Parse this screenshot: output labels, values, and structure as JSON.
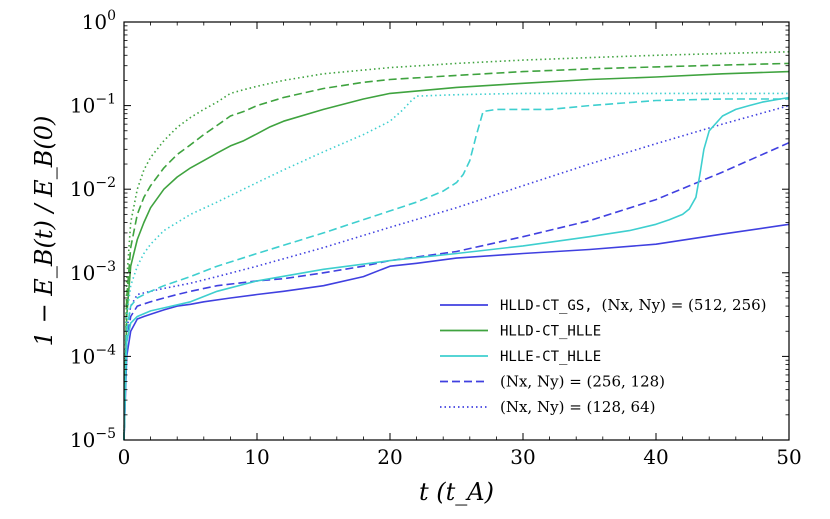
{
  "chart_data": {
    "type": "line",
    "xlabel": "t (t_A)",
    "ylabel": "1 − E_B(t) / E_B(0)",
    "yscale": "log",
    "xlim": [
      0,
      50
    ],
    "ylim": [
      1e-05,
      1
    ],
    "x_ticks": [
      0,
      10,
      20,
      30,
      40,
      50
    ],
    "x_tick_labels": [
      "0",
      "10",
      "20",
      "30",
      "40",
      "50"
    ],
    "y_ticks": [
      1e-05,
      0.0001,
      0.001,
      0.01,
      0.1,
      1
    ],
    "y_tick_labels": [
      {
        "base": "10",
        "exp": "−5"
      },
      {
        "base": "10",
        "exp": "−4"
      },
      {
        "base": "10",
        "exp": "−3"
      },
      {
        "base": "10",
        "exp": "−2"
      },
      {
        "base": "10",
        "exp": "−1"
      },
      {
        "base": "10",
        "exp": "0"
      }
    ],
    "colors": {
      "HLLD-CT_GS": "#4040e0",
      "HLLD-CT_HLLE": "#3fa33f",
      "HLLE-CT_HLLE": "#3ecfcf"
    },
    "legend": {
      "placement": "lower-right",
      "entries": [
        {
          "code": "HLLD-CT_GS,",
          "math": "(Nx, Ny) = (512, 256)",
          "style": "solid",
          "color": "#4040e0"
        },
        {
          "code": "HLLD-CT_HLLE",
          "math": "",
          "style": "solid",
          "color": "#3fa33f"
        },
        {
          "code": "HLLE-CT_HLLE",
          "math": "",
          "style": "solid",
          "color": "#3ecfcf"
        },
        {
          "code": "",
          "math": "(Nx, Ny) = (256, 128)",
          "style": "dashed",
          "color": "#4040e0"
        },
        {
          "code": "",
          "math": "(Nx, Ny) = (128, 64)",
          "style": "dotted",
          "color": "#4040e0"
        }
      ]
    },
    "series": [
      {
        "name": "HLLD-CT_GS (512,256)",
        "scheme": "HLLD-CT_GS",
        "resolution": "512x256",
        "style": "solid",
        "color": "#4040e0",
        "x": [
          0,
          0.2,
          0.5,
          1,
          1.5,
          2,
          3,
          4,
          5,
          6,
          8,
          10,
          12,
          15,
          18,
          20,
          22,
          25,
          30,
          35,
          40,
          45,
          50
        ],
        "y": [
          1e-05,
          0.0001,
          0.0002,
          0.00028,
          0.0003,
          0.00032,
          0.00036,
          0.0004,
          0.00042,
          0.00045,
          0.0005,
          0.00055,
          0.0006,
          0.0007,
          0.0009,
          0.0012,
          0.0013,
          0.0015,
          0.0017,
          0.0019,
          0.0022,
          0.0029,
          0.0038
        ]
      },
      {
        "name": "HLLD-CT_GS (256,128)",
        "scheme": "HLLD-CT_GS",
        "resolution": "256x128",
        "style": "dashed",
        "color": "#4040e0",
        "x": [
          0,
          0.2,
          0.5,
          1,
          2,
          3,
          4,
          5,
          7,
          10,
          12,
          15,
          18,
          20,
          25,
          30,
          35,
          40,
          45,
          50
        ],
        "y": [
          1e-05,
          0.00015,
          0.0003,
          0.0004,
          0.00045,
          0.0005,
          0.00055,
          0.0006,
          0.0007,
          0.0008,
          0.00085,
          0.001,
          0.0012,
          0.0014,
          0.0018,
          0.0027,
          0.0042,
          0.0075,
          0.016,
          0.036
        ]
      },
      {
        "name": "HLLD-CT_GS (128,64)",
        "scheme": "HLLD-CT_GS",
        "resolution": "128x64",
        "style": "dotted",
        "color": "#4040e0",
        "x": [
          0,
          0.2,
          0.5,
          1,
          2,
          3,
          5,
          7,
          10,
          15,
          20,
          25,
          30,
          35,
          40,
          45,
          50
        ],
        "y": [
          1e-05,
          0.0002,
          0.0004,
          0.00055,
          0.0006,
          0.00065,
          0.00075,
          0.0009,
          0.0012,
          0.002,
          0.0035,
          0.006,
          0.011,
          0.02,
          0.035,
          0.06,
          0.1
        ]
      },
      {
        "name": "HLLD-CT_HLLE (512,256)",
        "scheme": "HLLD-CT_HLLE",
        "resolution": "512x256",
        "style": "solid",
        "color": "#3fa33f",
        "x": [
          0,
          0.2,
          0.5,
          1,
          1.5,
          2,
          3,
          4,
          5,
          6,
          7,
          8,
          9,
          10,
          11,
          12,
          15,
          18,
          20,
          25,
          30,
          35,
          40,
          45,
          50
        ],
        "y": [
          1e-05,
          0.0003,
          0.0012,
          0.0025,
          0.004,
          0.006,
          0.01,
          0.014,
          0.018,
          0.022,
          0.027,
          0.033,
          0.038,
          0.046,
          0.056,
          0.065,
          0.09,
          0.12,
          0.14,
          0.165,
          0.185,
          0.205,
          0.22,
          0.24,
          0.255
        ]
      },
      {
        "name": "HLLD-CT_HLLE (256,128)",
        "scheme": "HLLD-CT_HLLE",
        "resolution": "256x128",
        "style": "dashed",
        "color": "#3fa33f",
        "x": [
          0,
          0.2,
          0.5,
          1,
          1.5,
          2,
          3,
          4,
          5,
          6,
          7,
          8,
          9,
          10,
          12,
          15,
          18,
          20,
          25,
          30,
          35,
          40,
          45,
          50
        ],
        "y": [
          1e-05,
          0.0005,
          0.002,
          0.005,
          0.008,
          0.011,
          0.018,
          0.026,
          0.034,
          0.045,
          0.058,
          0.075,
          0.085,
          0.1,
          0.125,
          0.16,
          0.19,
          0.205,
          0.23,
          0.255,
          0.275,
          0.29,
          0.305,
          0.32
        ]
      },
      {
        "name": "HLLD-CT_HLLE (128,64)",
        "scheme": "HLLD-CT_HLLE",
        "resolution": "128x64",
        "style": "dotted",
        "color": "#3fa33f",
        "x": [
          0,
          0.2,
          0.5,
          1,
          1.5,
          2,
          3,
          4,
          5,
          6,
          7,
          8,
          9,
          10,
          12,
          15,
          20,
          25,
          30,
          35,
          40,
          45,
          50
        ],
        "y": [
          1e-05,
          0.0008,
          0.004,
          0.01,
          0.017,
          0.024,
          0.038,
          0.055,
          0.072,
          0.09,
          0.11,
          0.14,
          0.155,
          0.17,
          0.2,
          0.24,
          0.285,
          0.32,
          0.35,
          0.375,
          0.4,
          0.42,
          0.44
        ]
      },
      {
        "name": "HLLE-CT_HLLE (512,256)",
        "scheme": "HLLE-CT_HLLE",
        "resolution": "512x256",
        "style": "solid",
        "color": "#3ecfcf",
        "x": [
          0,
          0.2,
          0.5,
          1,
          2,
          3,
          5,
          7,
          10,
          15,
          20,
          25,
          30,
          35,
          38,
          40,
          41,
          42,
          42.5,
          43,
          43.3,
          43.6,
          44,
          45,
          46,
          47,
          48,
          50
        ],
        "y": [
          1e-05,
          0.00015,
          0.00025,
          0.0003,
          0.00035,
          0.00038,
          0.00045,
          0.0006,
          0.0008,
          0.0011,
          0.0014,
          0.0017,
          0.0021,
          0.0027,
          0.0032,
          0.0038,
          0.0043,
          0.005,
          0.0058,
          0.008,
          0.015,
          0.03,
          0.05,
          0.075,
          0.09,
          0.1,
          0.11,
          0.125
        ]
      },
      {
        "name": "HLLE-CT_HLLE (256,128)",
        "scheme": "HLLE-CT_HLLE",
        "resolution": "256x128",
        "style": "dashed",
        "color": "#3ecfcf",
        "x": [
          0,
          0.2,
          0.5,
          1,
          2,
          3,
          5,
          7,
          10,
          15,
          20,
          22,
          24,
          25,
          25.5,
          26,
          26.5,
          27,
          28,
          30,
          32,
          35,
          40,
          45,
          50
        ],
        "y": [
          1e-05,
          0.0002,
          0.0004,
          0.0005,
          0.0006,
          0.0007,
          0.0009,
          0.0012,
          0.0017,
          0.003,
          0.0055,
          0.007,
          0.0095,
          0.012,
          0.015,
          0.022,
          0.045,
          0.085,
          0.09,
          0.09,
          0.09,
          0.1,
          0.115,
          0.12,
          0.12
        ]
      },
      {
        "name": "HLLE-CT_HLLE (128,64)",
        "scheme": "HLLE-CT_HLLE",
        "resolution": "128x64",
        "style": "dotted",
        "color": "#3ecfcf",
        "x": [
          0,
          0.2,
          0.5,
          1,
          1.5,
          2,
          3,
          5,
          7,
          10,
          12,
          15,
          18,
          20,
          21,
          21.5,
          22,
          25,
          30,
          35,
          40,
          45,
          50
        ],
        "y": [
          1e-05,
          0.0003,
          0.0007,
          0.0012,
          0.0017,
          0.0022,
          0.0032,
          0.005,
          0.007,
          0.012,
          0.017,
          0.028,
          0.045,
          0.065,
          0.09,
          0.11,
          0.13,
          0.135,
          0.14,
          0.14,
          0.14,
          0.14,
          0.14
        ]
      }
    ]
  }
}
